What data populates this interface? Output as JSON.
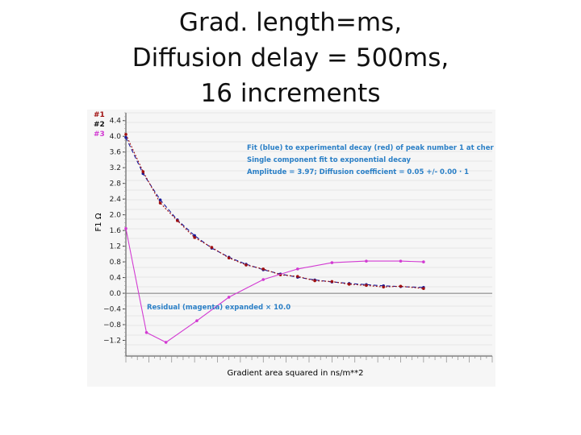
{
  "slide": {
    "title_lines": [
      "Grad. length=ms,",
      "Diffusion delay = 500ms,",
      "16 increments"
    ]
  },
  "colors": {
    "fit": "#1a1a9a",
    "experimental": "#a01010",
    "residual": "#d23ad2",
    "annotation": "#2a7fc6",
    "axis": "#444444",
    "zero_line": "#7a7a7a",
    "chart_background": "#f6f6f6"
  },
  "chart_data": {
    "type": "line",
    "title": "",
    "xlabel": "Gradient area squared in ns/m**2",
    "ylabel": "F1 Ω",
    "ylim": [
      -1.6,
      4.6
    ],
    "xlim": [
      0,
      16
    ],
    "y_ticks": [
      "4.4",
      "4.0",
      "3.6",
      "3.2",
      "2.8",
      "2.4",
      "2.0",
      "1.6",
      "1.2",
      "0.8",
      "0.4",
      "0.0",
      "−0.4",
      "−0.8",
      "−1.2"
    ],
    "y_tick_values": [
      4.4,
      4.0,
      3.6,
      3.2,
      2.8,
      2.4,
      2.0,
      1.6,
      1.2,
      0.8,
      0.4,
      0.0,
      -0.4,
      -0.8,
      -1.2
    ],
    "legend": [
      "#1",
      "#2",
      "#3"
    ],
    "annotations": [
      "Fit (blue) to experimental decay (red) of peak number 1 at cher",
      "Single component fit to  exponential decay",
      "Amplitude =    3.97;  Diffusion coefficient =  0.05 +/-  0.00 · 1"
    ],
    "residual_label": "Residual (magenta) expanded ×   10.0",
    "series": [
      {
        "x": [
          0,
          0.75,
          1.5,
          2.25,
          3,
          3.75,
          4.5,
          5.25,
          6,
          6.75,
          7.5,
          8.25,
          9,
          9.75,
          10.5,
          11.25,
          12,
          13
        ],
        "values": [
          3.97,
          3.05,
          2.38,
          1.87,
          1.47,
          1.15,
          0.92,
          0.74,
          0.6,
          0.49,
          0.41,
          0.34,
          0.29,
          0.25,
          0.22,
          0.19,
          0.17,
          0.15
        ]
      },
      {
        "x": [
          0,
          0.75,
          1.5,
          2.25,
          3,
          3.75,
          4.5,
          5.25,
          6,
          6.75,
          7.5,
          8.25,
          9,
          9.75,
          10.5,
          11.25,
          12,
          13
        ],
        "values": [
          4.05,
          3.1,
          2.3,
          1.85,
          1.42,
          1.17,
          0.9,
          0.72,
          0.62,
          0.47,
          0.43,
          0.32,
          0.3,
          0.23,
          0.2,
          0.16,
          0.18,
          0.12
        ]
      },
      {
        "x": [
          0,
          0.9,
          1.75,
          3.1,
          4.5,
          6,
          7.5,
          9,
          10.5,
          12,
          13
        ],
        "values": [
          1.65,
          -1.0,
          -1.25,
          -0.7,
          -0.1,
          0.35,
          0.62,
          0.78,
          0.82,
          0.82,
          0.8
        ]
      }
    ]
  }
}
